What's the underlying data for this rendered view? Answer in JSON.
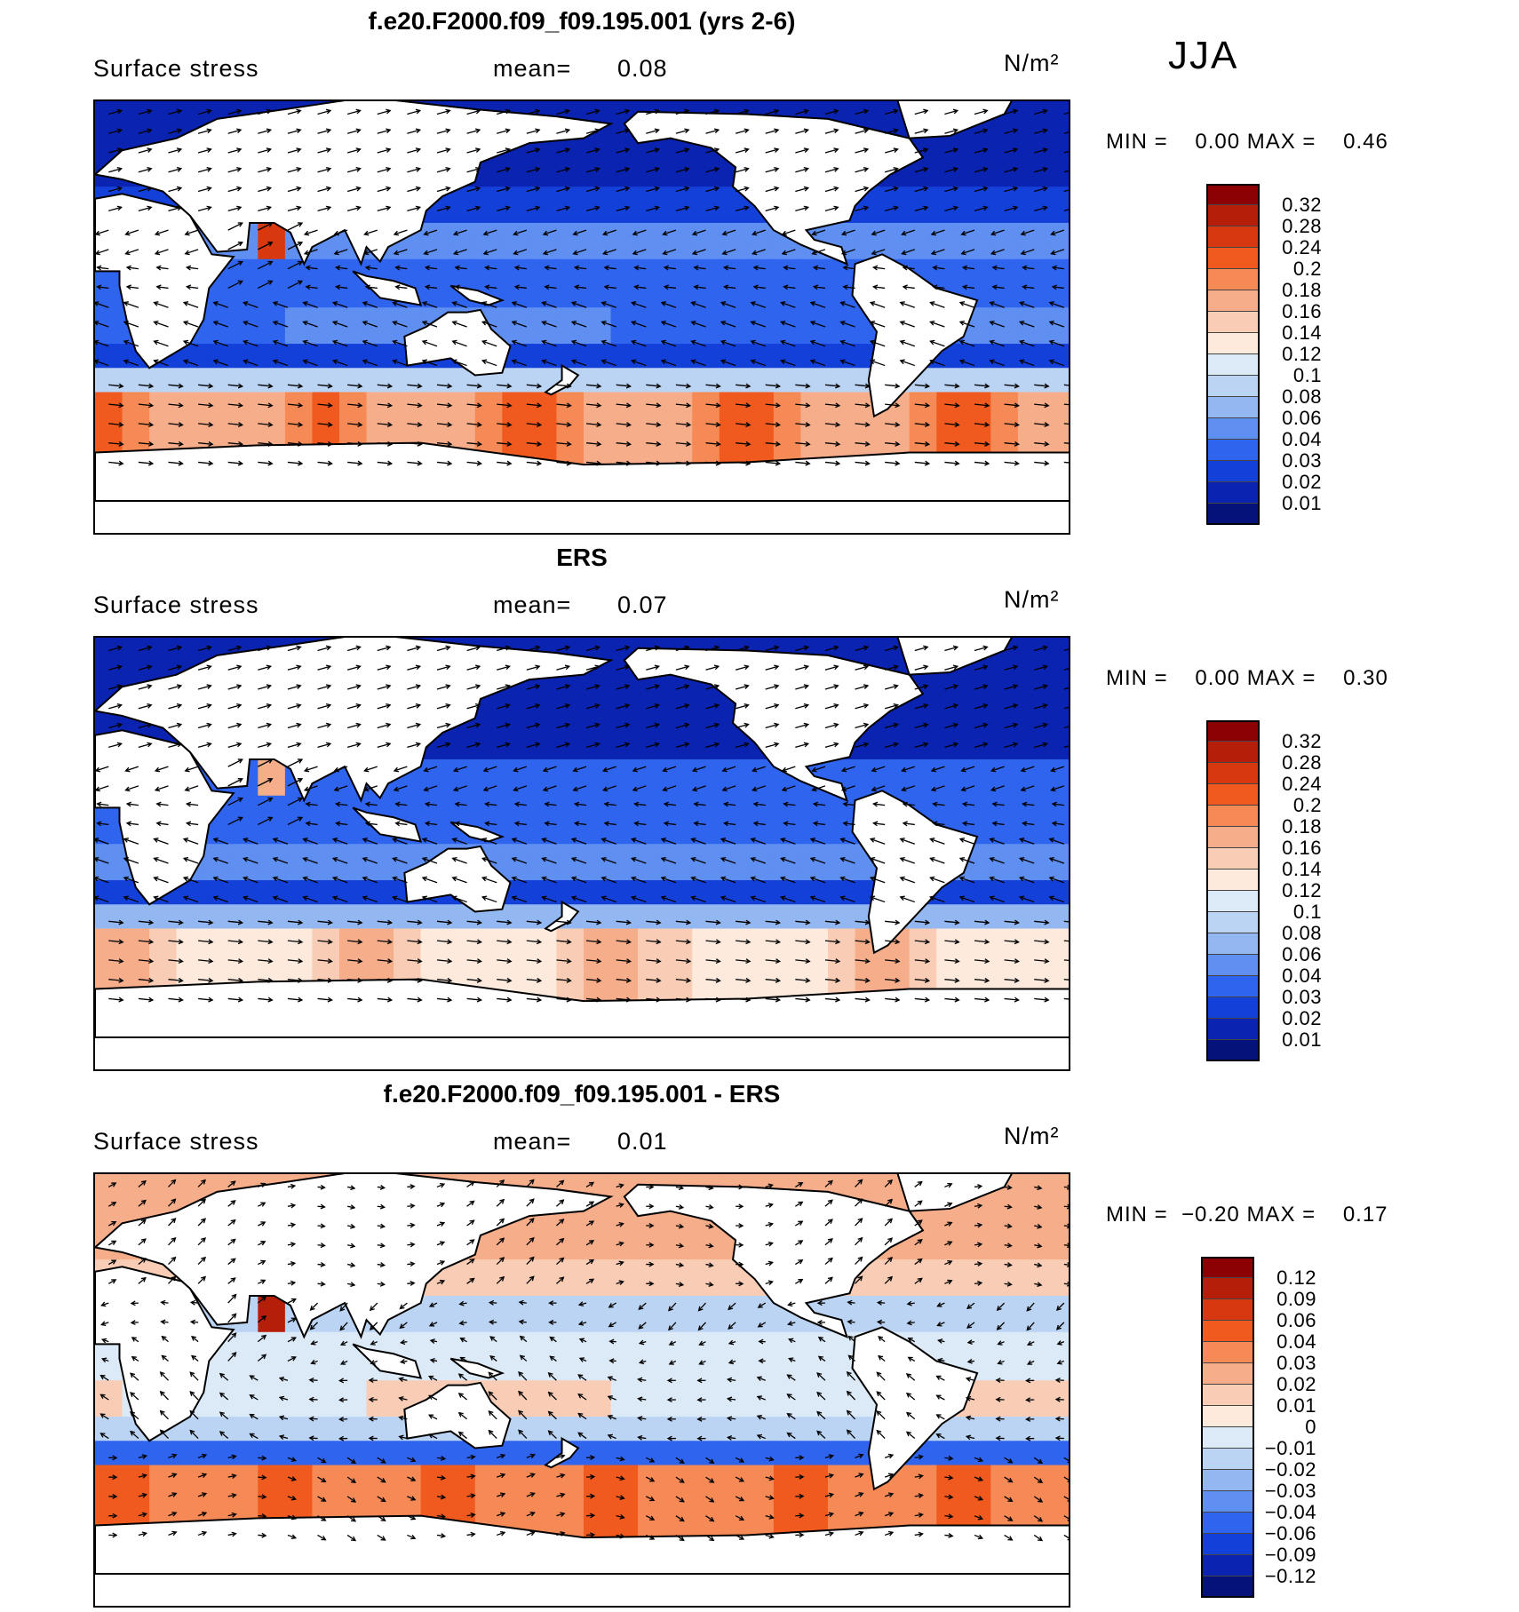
{
  "season": "JJA",
  "panels": [
    {
      "title": "f.e20.F2000.f09_f09.195.001 (yrs 2-6)",
      "variable": "Surface stress",
      "mean_label": "mean=",
      "mean_value": "0.08",
      "units": "N/m²",
      "min_label": "MIN =",
      "min_value": "0.00",
      "max_label": "MAX =",
      "max_value": "0.46",
      "colorbar": {
        "levels": [
          "0.32",
          "0.28",
          "0.24",
          "0.2",
          "0.18",
          "0.16",
          "0.14",
          "0.12",
          "0.1",
          "0.08",
          "0.06",
          "0.04",
          "0.03",
          "0.02",
          "0.01"
        ],
        "colors": [
          "#8b0000",
          "#b51f0a",
          "#d8380f",
          "#f05a1e",
          "#f68a56",
          "#f6ad8a",
          "#f9cdb5",
          "#fdeadc",
          "#dce9f7",
          "#bcd4f3",
          "#93b7f0",
          "#5f8ff0",
          "#2f64ee",
          "#1340d8",
          "#0a23b0",
          "#04127a"
        ]
      }
    },
    {
      "title": "ERS",
      "variable": "Surface stress",
      "mean_label": "mean=",
      "mean_value": "0.07",
      "units": "N/m²",
      "min_label": "MIN =",
      "min_value": "0.00",
      "max_label": "MAX =",
      "max_value": "0.30",
      "colorbar": {
        "levels": [
          "0.32",
          "0.28",
          "0.24",
          "0.2",
          "0.18",
          "0.16",
          "0.14",
          "0.12",
          "0.1",
          "0.08",
          "0.06",
          "0.04",
          "0.03",
          "0.02",
          "0.01"
        ],
        "colors": [
          "#8b0000",
          "#b51f0a",
          "#d8380f",
          "#f05a1e",
          "#f68a56",
          "#f6ad8a",
          "#f9cdb5",
          "#fdeadc",
          "#dce9f7",
          "#bcd4f3",
          "#93b7f0",
          "#5f8ff0",
          "#2f64ee",
          "#1340d8",
          "#0a23b0",
          "#04127a"
        ]
      }
    },
    {
      "title": "f.e20.F2000.f09_f09.195.001 - ERS",
      "variable": "Surface stress",
      "mean_label": "mean=",
      "mean_value": "0.01",
      "units": "N/m²",
      "min_label": "MIN =",
      "min_value": "−0.20",
      "max_label": "MAX =",
      "max_value": "0.17",
      "colorbar": {
        "levels": [
          "0.12",
          "0.09",
          "0.06",
          "0.04",
          "0.03",
          "0.02",
          "0.01",
          "0",
          "−0.01",
          "−0.02",
          "−0.03",
          "−0.04",
          "−0.06",
          "−0.09",
          "−0.12"
        ],
        "colors": [
          "#8b0000",
          "#b51f0a",
          "#d8380f",
          "#f05a1e",
          "#f68a56",
          "#f6ad8a",
          "#f9cdb5",
          "#fdeadc",
          "#dce9f7",
          "#bcd4f3",
          "#93b7f0",
          "#5f8ff0",
          "#2f64ee",
          "#1340d8",
          "#0a23b0",
          "#04127a"
        ]
      }
    }
  ]
}
